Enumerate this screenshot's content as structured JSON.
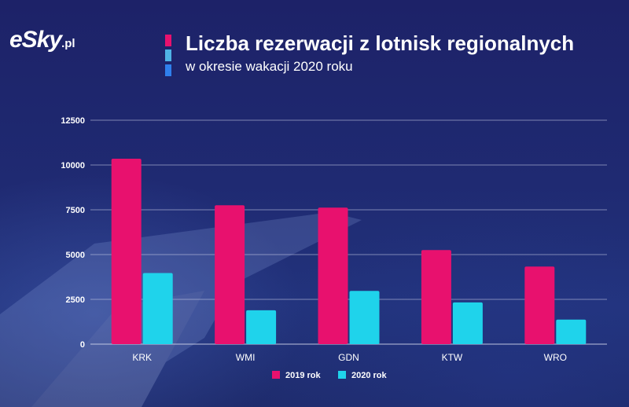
{
  "brand": {
    "logo_text": "eSky",
    "logo_suffix": ".pl"
  },
  "colors": {
    "series_2019": "#e8116e",
    "series_2020": "#1fd3eb",
    "title_bar_1": "#e8116e",
    "title_bar_2": "#4fb3e6",
    "title_bar_3": "#2f80ed",
    "grid": "#c9cde6"
  },
  "chart_data": {
    "type": "bar",
    "title": "Liczba rezerwacji z lotnisk regionalnych",
    "subtitle": "w okresie wakacji 2020 roku",
    "categories": [
      "KRK",
      "WMI",
      "GDN",
      "KTW",
      "WRO"
    ],
    "series": [
      {
        "name": "2019 rok",
        "values": [
          10350,
          7750,
          7620,
          5250,
          4330
        ]
      },
      {
        "name": "2020 rok",
        "values": [
          3970,
          1890,
          2970,
          2330,
          1370
        ]
      }
    ],
    "yticks": [
      "0",
      "2500",
      "5000",
      "7500",
      "10000",
      "12500"
    ],
    "ylim": [
      0,
      12500
    ],
    "grid": true,
    "legend_position": "bottom"
  }
}
